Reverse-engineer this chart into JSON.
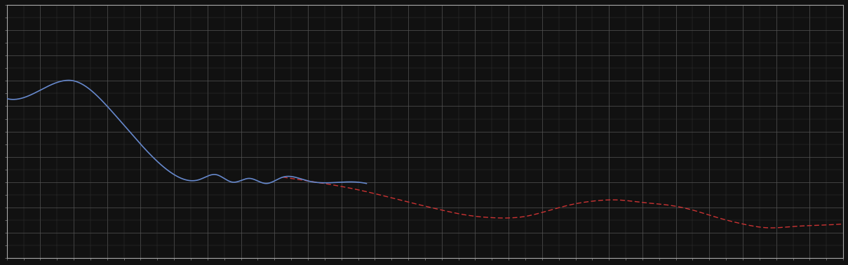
{
  "background_color": "#111111",
  "axes_bg_color": "#111111",
  "plot_border_color": "#cccccc",
  "grid_color": "#555555",
  "blue_line_color": "#6688cc",
  "red_line_color": "#cc3333",
  "fig_width": 12.09,
  "fig_height": 3.78,
  "xlim": [
    0,
    100
  ],
  "ylim": [
    0,
    10
  ],
  "grid_x_step": 4,
  "grid_y_step": 1
}
